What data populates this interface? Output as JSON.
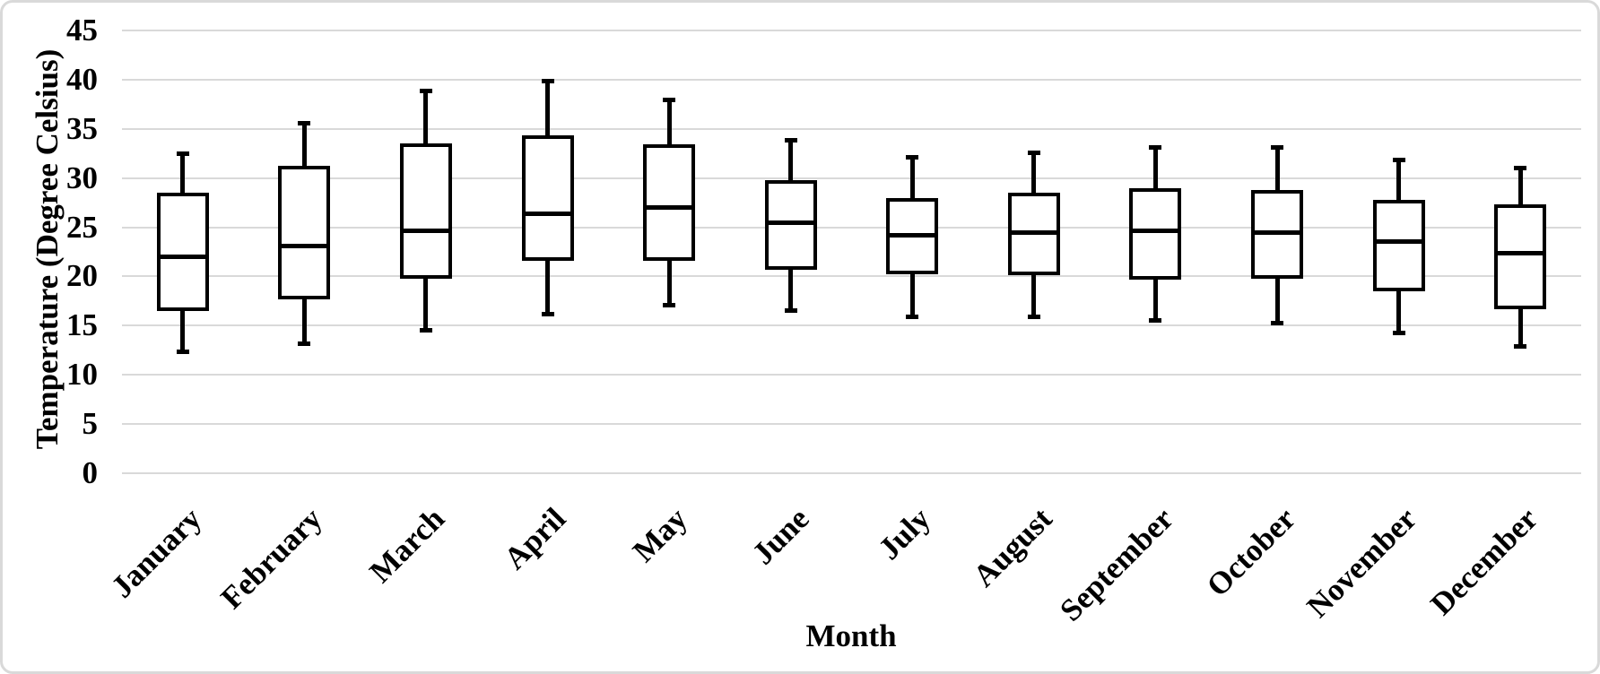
{
  "chart_data": {
    "type": "boxplot",
    "title": "",
    "xlabel": "Month",
    "ylabel": "Temperature (Degree Celsius)",
    "ylim": [
      0,
      45
    ],
    "ytick_step": 5,
    "ytick_labels": [
      "0",
      "5",
      "10",
      "15",
      "20",
      "25",
      "30",
      "35",
      "40",
      "45"
    ],
    "grid": "horizontal-only",
    "legend": "none",
    "categories": [
      "January",
      "February",
      "March",
      "April",
      "May",
      "June",
      "July",
      "August",
      "September",
      "October",
      "November",
      "December"
    ],
    "series": [
      {
        "name": "January",
        "min": 12.4,
        "q1": 16.5,
        "median": 22.0,
        "q3": 28.5,
        "max": 32.5
      },
      {
        "name": "February",
        "min": 13.2,
        "q1": 17.7,
        "median": 23.1,
        "q3": 31.2,
        "max": 35.6
      },
      {
        "name": "March",
        "min": 14.6,
        "q1": 19.8,
        "median": 24.7,
        "q3": 33.5,
        "max": 38.9
      },
      {
        "name": "April",
        "min": 16.2,
        "q1": 21.6,
        "median": 26.4,
        "q3": 34.3,
        "max": 39.9
      },
      {
        "name": "May",
        "min": 17.1,
        "q1": 21.6,
        "median": 27.1,
        "q3": 33.4,
        "max": 38.0
      },
      {
        "name": "June",
        "min": 16.6,
        "q1": 20.7,
        "median": 25.5,
        "q3": 29.8,
        "max": 33.9
      },
      {
        "name": "July",
        "min": 15.9,
        "q1": 20.2,
        "median": 24.2,
        "q3": 28.0,
        "max": 32.2
      },
      {
        "name": "August",
        "min": 15.9,
        "q1": 20.1,
        "median": 24.5,
        "q3": 28.5,
        "max": 32.6
      },
      {
        "name": "September",
        "min": 15.6,
        "q1": 19.7,
        "median": 24.7,
        "q3": 29.0,
        "max": 33.2
      },
      {
        "name": "October",
        "min": 15.3,
        "q1": 19.8,
        "median": 24.5,
        "q3": 28.8,
        "max": 33.2
      },
      {
        "name": "November",
        "min": 14.3,
        "q1": 18.5,
        "median": 23.6,
        "q3": 27.8,
        "max": 31.9
      },
      {
        "name": "December",
        "min": 12.9,
        "q1": 16.7,
        "median": 22.4,
        "q3": 27.3,
        "max": 31.1
      }
    ],
    "colors": {
      "box_stroke": "#000000",
      "box_fill": "#ffffff",
      "median": "#000000",
      "whisker": "#000000",
      "gridline": "#d9d9d9",
      "text": "#000000",
      "figure_border": "#d9d9d9",
      "background": "#ffffff"
    }
  }
}
